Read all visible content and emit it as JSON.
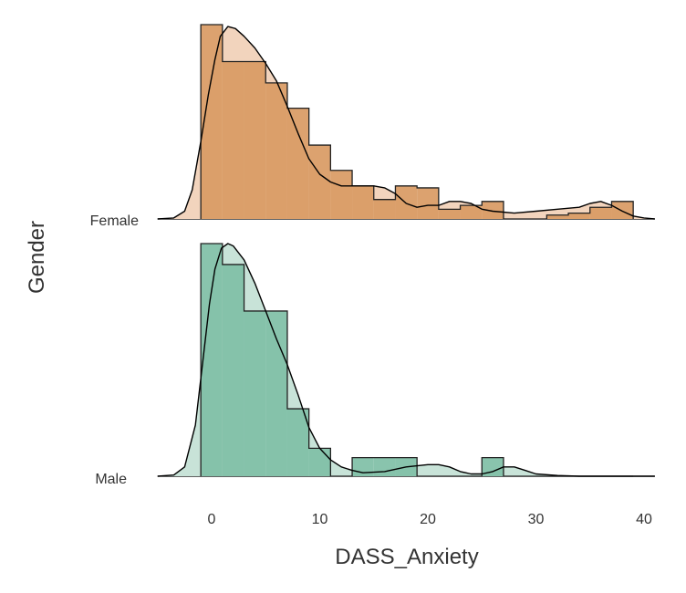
{
  "chart_data": {
    "type": "ridgeline-histogram",
    "xlabel": "DASS_Anxiety",
    "ylabel": "Gender",
    "xlim": [
      -5,
      41
    ],
    "xticks": [
      0,
      10,
      20,
      30,
      40
    ],
    "tick_labels": [
      "0",
      "10",
      "20",
      "30",
      "40"
    ],
    "bin_width": 2,
    "bin_start": -1,
    "groups": [
      {
        "name": "Female",
        "fill": "#d99a63",
        "fill_light": "#f2d4bd",
        "counts": [
          1.0,
          0.81,
          0.81,
          0.7,
          0.57,
          0.38,
          0.25,
          0.17,
          0.1,
          0.17,
          0.16,
          0.05,
          0.07,
          0.09,
          0.0,
          0.0,
          0.02,
          0.03,
          0.06,
          0.09
        ],
        "density": [
          [
            -5.0,
            0.0
          ],
          [
            -3.5,
            0.005
          ],
          [
            -2.5,
            0.04
          ],
          [
            -1.8,
            0.15
          ],
          [
            -1.0,
            0.4
          ],
          [
            -0.3,
            0.64
          ],
          [
            0.3,
            0.82
          ],
          [
            0.8,
            0.94
          ],
          [
            1.5,
            0.99
          ],
          [
            2.2,
            0.98
          ],
          [
            3.0,
            0.94
          ],
          [
            4.0,
            0.88
          ],
          [
            5.0,
            0.8
          ],
          [
            6.0,
            0.71
          ],
          [
            7.0,
            0.58
          ],
          [
            8.0,
            0.44
          ],
          [
            9.0,
            0.31
          ],
          [
            10.0,
            0.23
          ],
          [
            11.0,
            0.19
          ],
          [
            12.0,
            0.17
          ],
          [
            13.0,
            0.17
          ],
          [
            14.0,
            0.17
          ],
          [
            15.0,
            0.17
          ],
          [
            16.0,
            0.16
          ],
          [
            17.0,
            0.13
          ],
          [
            18.0,
            0.08
          ],
          [
            19.0,
            0.06
          ],
          [
            20.0,
            0.07
          ],
          [
            21.0,
            0.07
          ],
          [
            22.0,
            0.09
          ],
          [
            23.0,
            0.09
          ],
          [
            24.0,
            0.08
          ],
          [
            25.0,
            0.05
          ],
          [
            26.0,
            0.04
          ],
          [
            28.0,
            0.03
          ],
          [
            30.0,
            0.04
          ],
          [
            32.0,
            0.05
          ],
          [
            34.0,
            0.06
          ],
          [
            35.0,
            0.08
          ],
          [
            36.0,
            0.09
          ],
          [
            37.0,
            0.07
          ],
          [
            38.0,
            0.04
          ],
          [
            39.0,
            0.015
          ],
          [
            40.0,
            0.005
          ],
          [
            41.0,
            0.0
          ]
        ]
      },
      {
        "name": "Male",
        "fill": "#7fbfa6",
        "fill_light": "#c8e3d8",
        "counts": [
          1.0,
          0.91,
          0.71,
          0.71,
          0.29,
          0.12,
          0.0,
          0.08,
          0.08,
          0.08,
          0.0,
          0.0,
          0.0,
          0.08,
          0.0,
          0.0,
          0.0,
          0.0,
          0.0,
          0.0
        ],
        "density": [
          [
            -5.0,
            0.0
          ],
          [
            -3.5,
            0.005
          ],
          [
            -2.5,
            0.04
          ],
          [
            -1.5,
            0.22
          ],
          [
            -0.8,
            0.5
          ],
          [
            -0.2,
            0.74
          ],
          [
            0.3,
            0.89
          ],
          [
            0.9,
            0.98
          ],
          [
            1.5,
            1.0
          ],
          [
            2.0,
            0.99
          ],
          [
            3.0,
            0.93
          ],
          [
            4.0,
            0.83
          ],
          [
            5.0,
            0.71
          ],
          [
            6.0,
            0.59
          ],
          [
            7.0,
            0.48
          ],
          [
            8.0,
            0.35
          ],
          [
            9.0,
            0.21
          ],
          [
            10.0,
            0.12
          ],
          [
            11.0,
            0.07
          ],
          [
            12.0,
            0.04
          ],
          [
            13.0,
            0.025
          ],
          [
            14.0,
            0.015
          ],
          [
            16.0,
            0.02
          ],
          [
            18.0,
            0.04
          ],
          [
            20.0,
            0.05
          ],
          [
            21.0,
            0.05
          ],
          [
            22.0,
            0.04
          ],
          [
            23.0,
            0.02
          ],
          [
            24.0,
            0.01
          ],
          [
            25.0,
            0.01
          ],
          [
            26.0,
            0.02
          ],
          [
            27.0,
            0.04
          ],
          [
            28.0,
            0.04
          ],
          [
            29.0,
            0.025
          ],
          [
            30.0,
            0.01
          ],
          [
            32.0,
            0.003
          ],
          [
            34.0,
            0.0
          ],
          [
            41.0,
            0.0
          ]
        ]
      }
    ]
  }
}
